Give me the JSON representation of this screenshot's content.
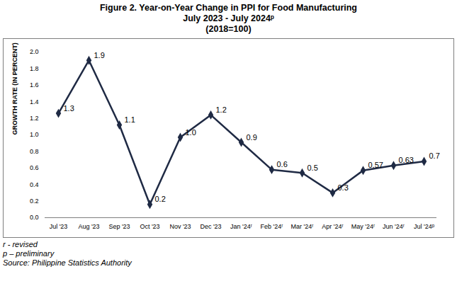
{
  "chart_data": {
    "type": "line",
    "title": "Figure 2. Year-on-Year Change in PPI for Food Manufacturing",
    "subtitle": [
      "July 2023 - July 2024ᵖ",
      "(2018=100)"
    ],
    "y_label": "GROWTH RATE (IN PERCENT)",
    "categories": [
      "Jul '23",
      "Aug '23",
      "Sep '23",
      "Oct '23",
      "Nov '23",
      "Dec '23",
      "Jan '24ʳ",
      "Feb '24ʳ",
      "Mar '24ʳ",
      "Apr '24ʳ",
      "May '24ʳ",
      "Jun '24ʳ",
      "Jul '24ᵖ"
    ],
    "values": [
      1.26,
      1.9,
      1.12,
      0.16,
      0.97,
      1.24,
      0.91,
      0.58,
      0.54,
      0.3,
      0.57,
      0.63,
      0.68
    ],
    "value_labels": [
      "1.3",
      "1.9",
      "1.1",
      "0.2",
      "1.0",
      "1.2",
      "0.9",
      "0.6",
      "0.5",
      "0.3",
      "0.57",
      "0.63",
      "0.7"
    ],
    "color": "#1f2a44",
    "marker": "diamond",
    "data_labels": true,
    "grid": false,
    "ylim": [
      0,
      2
    ],
    "yticks": [
      {
        "value": 0,
        "label": "0.0"
      },
      0.2,
      0.4,
      0.6,
      0.8,
      {
        "value": 1,
        "label": "1.0"
      },
      1.2,
      1.4,
      1.6,
      1.8,
      {
        "value": 2,
        "label": "2.0"
      }
    ],
    "notes": [
      "r - revised",
      "p – preliminary",
      "Source: Philippine Statistics Authority"
    ]
  }
}
